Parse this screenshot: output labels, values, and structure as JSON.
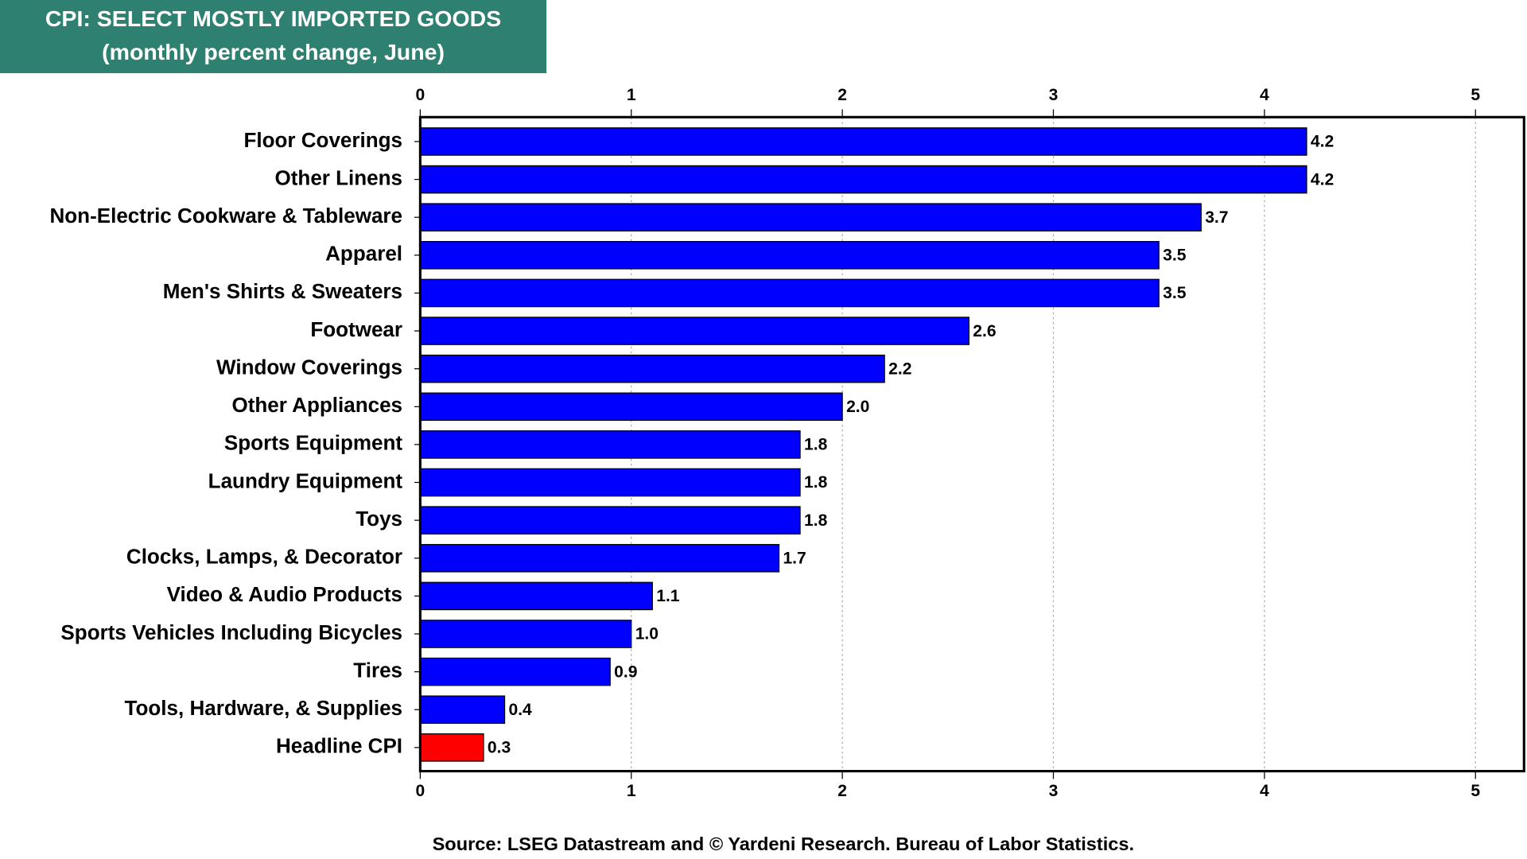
{
  "chart_data": {
    "type": "hbar",
    "title": "CPI: SELECT MOSTLY IMPORTED GOODS",
    "subtitle": "(monthly percent change, June)",
    "source": "Source: LSEG Datastream and © Yardeni Research. Bureau of Labor Statistics.",
    "categories": [
      "Floor Coverings",
      "Other Linens",
      "Non-Electric Cookware & Tableware",
      "Apparel",
      "Men's Shirts & Sweaters",
      "Footwear",
      "Window Coverings",
      "Other Appliances",
      "Sports Equipment",
      "Laundry Equipment",
      "Toys",
      "Clocks, Lamps, & Decorator",
      "Video & Audio Products",
      "Sports Vehicles Including Bicycles",
      "Tires",
      "Tools, Hardware, & Supplies",
      "Headline CPI"
    ],
    "values": [
      4.2,
      4.2,
      3.7,
      3.5,
      3.5,
      2.6,
      2.2,
      2.0,
      1.8,
      1.8,
      1.8,
      1.7,
      1.1,
      1.0,
      0.9,
      0.4,
      0.3
    ],
    "value_labels": [
      "4.2",
      "4.2",
      "3.7",
      "3.5",
      "3.5",
      "2.6",
      "2.2",
      "2.0",
      "1.8",
      "1.8",
      "1.8",
      "1.7",
      "1.1",
      "1.0",
      "0.9",
      "0.4",
      "0.3"
    ],
    "colors": [
      "#0000ff",
      "#0000ff",
      "#0000ff",
      "#0000ff",
      "#0000ff",
      "#0000ff",
      "#0000ff",
      "#0000ff",
      "#0000ff",
      "#0000ff",
      "#0000ff",
      "#0000ff",
      "#0000ff",
      "#0000ff",
      "#0000ff",
      "#0000ff",
      "#ff0000"
    ],
    "xlim": [
      0,
      5.23
    ],
    "xticks": [
      0,
      1,
      2,
      3,
      4,
      5
    ],
    "grid": true
  }
}
